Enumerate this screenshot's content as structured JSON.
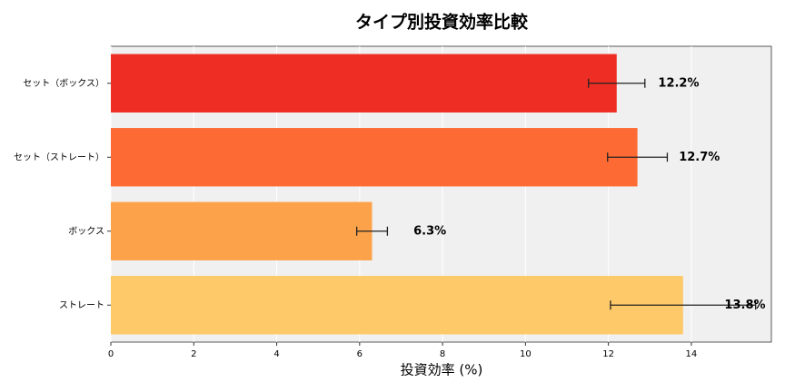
{
  "chart_data": {
    "type": "bar",
    "orientation": "horizontal",
    "title": "タイプ別投資効率比較",
    "xlabel": "投資効率 (%)",
    "categories": [
      "セット（ボックス）",
      "セット（ストレート）",
      "ボックス",
      "ストレート"
    ],
    "values": [
      12.2,
      12.7,
      6.3,
      13.8
    ],
    "value_labels": [
      "12.2%",
      "12.7%",
      "6.3%",
      "13.8%"
    ],
    "errors": [
      0.68,
      0.72,
      0.37,
      1.75
    ],
    "colors": [
      "#ee2e24",
      "#fd6a34",
      "#fca24b",
      "#fdc969"
    ],
    "xlim": [
      0,
      15.93
    ],
    "xticks": [
      0,
      2,
      4,
      6,
      8,
      10,
      12,
      14
    ],
    "grid": true
  }
}
